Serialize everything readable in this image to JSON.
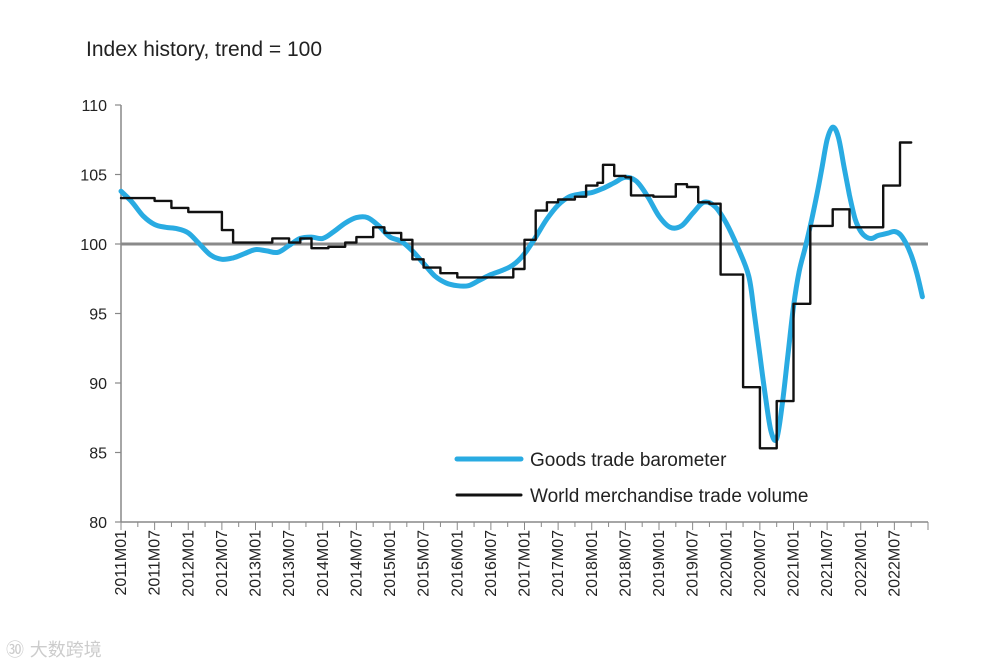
{
  "chart_data": {
    "type": "line",
    "title": "Index history, trend = 100",
    "xlabel": "",
    "ylabel": "",
    "ylim": [
      80,
      110
    ],
    "yticks": [
      80,
      85,
      90,
      95,
      100,
      105,
      110
    ],
    "x_tick_labels": [
      "2011M01",
      "2011M07",
      "2012M01",
      "2012M07",
      "2013M01",
      "2013M07",
      "2014M01",
      "2014M07",
      "2015M01",
      "2015M07",
      "2016M01",
      "2016M07",
      "2017M01",
      "2017M07",
      "2018M01",
      "2018M07",
      "2019M01",
      "2019M07",
      "2020M01",
      "2020M07",
      "2021M01",
      "2021M07",
      "2022M01",
      "2022M07"
    ],
    "reference_line": 100,
    "series": [
      {
        "name": "Goods trade barometer",
        "color": "#29abe2",
        "style": "smooth",
        "points": [
          [
            0,
            103.8
          ],
          [
            2,
            103.0
          ],
          [
            4,
            102.0
          ],
          [
            6,
            101.4
          ],
          [
            8,
            101.2
          ],
          [
            10,
            101.1
          ],
          [
            12,
            100.8
          ],
          [
            14,
            100.0
          ],
          [
            16,
            99.2
          ],
          [
            18,
            98.9
          ],
          [
            20,
            99.0
          ],
          [
            22,
            99.3
          ],
          [
            24,
            99.6
          ],
          [
            26,
            99.5
          ],
          [
            28,
            99.4
          ],
          [
            30,
            99.9
          ],
          [
            32,
            100.4
          ],
          [
            34,
            100.5
          ],
          [
            36,
            100.4
          ],
          [
            38,
            100.9
          ],
          [
            40,
            101.5
          ],
          [
            42,
            101.9
          ],
          [
            44,
            101.9
          ],
          [
            46,
            101.3
          ],
          [
            48,
            100.5
          ],
          [
            50,
            100.2
          ],
          [
            52,
            99.5
          ],
          [
            54,
            98.6
          ],
          [
            56,
            97.7
          ],
          [
            58,
            97.2
          ],
          [
            60,
            97.0
          ],
          [
            62,
            97.0
          ],
          [
            64,
            97.4
          ],
          [
            66,
            97.8
          ],
          [
            68,
            98.1
          ],
          [
            70,
            98.5
          ],
          [
            72,
            99.3
          ],
          [
            74,
            100.5
          ],
          [
            76,
            101.8
          ],
          [
            78,
            102.8
          ],
          [
            80,
            103.4
          ],
          [
            82,
            103.6
          ],
          [
            84,
            103.7
          ],
          [
            86,
            104.0
          ],
          [
            88,
            104.4
          ],
          [
            90,
            104.8
          ],
          [
            92,
            104.5
          ],
          [
            94,
            103.4
          ],
          [
            96,
            102.0
          ],
          [
            98,
            101.2
          ],
          [
            100,
            101.3
          ],
          [
            102,
            102.2
          ],
          [
            104,
            103.0
          ],
          [
            106,
            102.7
          ],
          [
            108,
            101.5
          ],
          [
            110,
            99.8
          ],
          [
            112,
            97.7
          ],
          [
            113,
            95.0
          ],
          [
            114,
            92.0
          ],
          [
            115,
            89.0
          ],
          [
            116,
            86.5
          ],
          [
            117,
            86.0
          ],
          [
            118,
            88.5
          ],
          [
            119,
            92.0
          ],
          [
            120,
            95.5
          ],
          [
            121,
            98.0
          ],
          [
            122,
            99.6
          ],
          [
            123,
            101.3
          ],
          [
            124,
            103.2
          ],
          [
            125,
            105.3
          ],
          [
            126,
            107.5
          ],
          [
            127,
            108.4
          ],
          [
            128,
            107.7
          ],
          [
            129,
            105.6
          ],
          [
            130,
            103.5
          ],
          [
            131,
            101.8
          ],
          [
            132,
            100.9
          ],
          [
            133,
            100.5
          ],
          [
            134,
            100.4
          ],
          [
            135,
            100.6
          ],
          [
            136,
            100.7
          ],
          [
            137,
            100.8
          ],
          [
            138,
            100.9
          ],
          [
            139,
            100.7
          ],
          [
            140,
            100.1
          ],
          [
            141,
            99.2
          ],
          [
            142,
            97.9
          ],
          [
            143,
            96.2
          ]
        ]
      },
      {
        "name": "World merchandise trade volume",
        "color": "#111111",
        "style": "step",
        "points": [
          [
            0,
            103.3
          ],
          [
            6,
            103.1
          ],
          [
            9,
            102.6
          ],
          [
            12,
            102.3
          ],
          [
            18,
            101.0
          ],
          [
            20,
            100.1
          ],
          [
            25,
            100.1
          ],
          [
            27,
            100.4
          ],
          [
            30,
            100.1
          ],
          [
            32,
            100.4
          ],
          [
            34,
            99.7
          ],
          [
            37,
            99.8
          ],
          [
            40,
            100.1
          ],
          [
            42,
            100.5
          ],
          [
            45,
            101.2
          ],
          [
            47,
            100.8
          ],
          [
            50,
            100.3
          ],
          [
            52,
            98.9
          ],
          [
            54,
            98.3
          ],
          [
            57,
            97.9
          ],
          [
            60,
            97.6
          ],
          [
            63,
            97.6
          ],
          [
            66,
            97.6
          ],
          [
            70,
            98.2
          ],
          [
            72,
            100.3
          ],
          [
            74,
            102.4
          ],
          [
            76,
            103.0
          ],
          [
            78,
            103.2
          ],
          [
            81,
            103.4
          ],
          [
            83,
            104.2
          ],
          [
            85,
            104.4
          ],
          [
            86,
            105.7
          ],
          [
            88,
            104.9
          ],
          [
            90,
            104.8
          ],
          [
            91,
            103.5
          ],
          [
            95,
            103.4
          ],
          [
            99,
            104.3
          ],
          [
            101,
            104.1
          ],
          [
            103,
            103.0
          ],
          [
            105,
            102.9
          ],
          [
            107,
            97.8
          ],
          [
            109,
            97.8
          ],
          [
            111,
            89.7
          ],
          [
            113,
            89.7
          ],
          [
            114,
            85.3
          ],
          [
            116,
            85.3
          ],
          [
            117,
            88.7
          ],
          [
            119,
            88.7
          ],
          [
            120,
            95.7
          ],
          [
            122,
            95.7
          ],
          [
            123,
            101.3
          ],
          [
            126,
            101.3
          ],
          [
            127,
            102.5
          ],
          [
            129,
            102.5
          ],
          [
            130,
            101.2
          ],
          [
            133,
            101.2
          ],
          [
            136,
            104.2
          ],
          [
            138,
            104.2
          ],
          [
            139,
            107.3
          ],
          [
            141,
            107.3
          ]
        ]
      }
    ],
    "legend": {
      "placement": "bottom-right",
      "entries": [
        "Goods trade barometer",
        "World merchandise trade volume"
      ]
    }
  },
  "watermark": "㉚ 大数跨境"
}
